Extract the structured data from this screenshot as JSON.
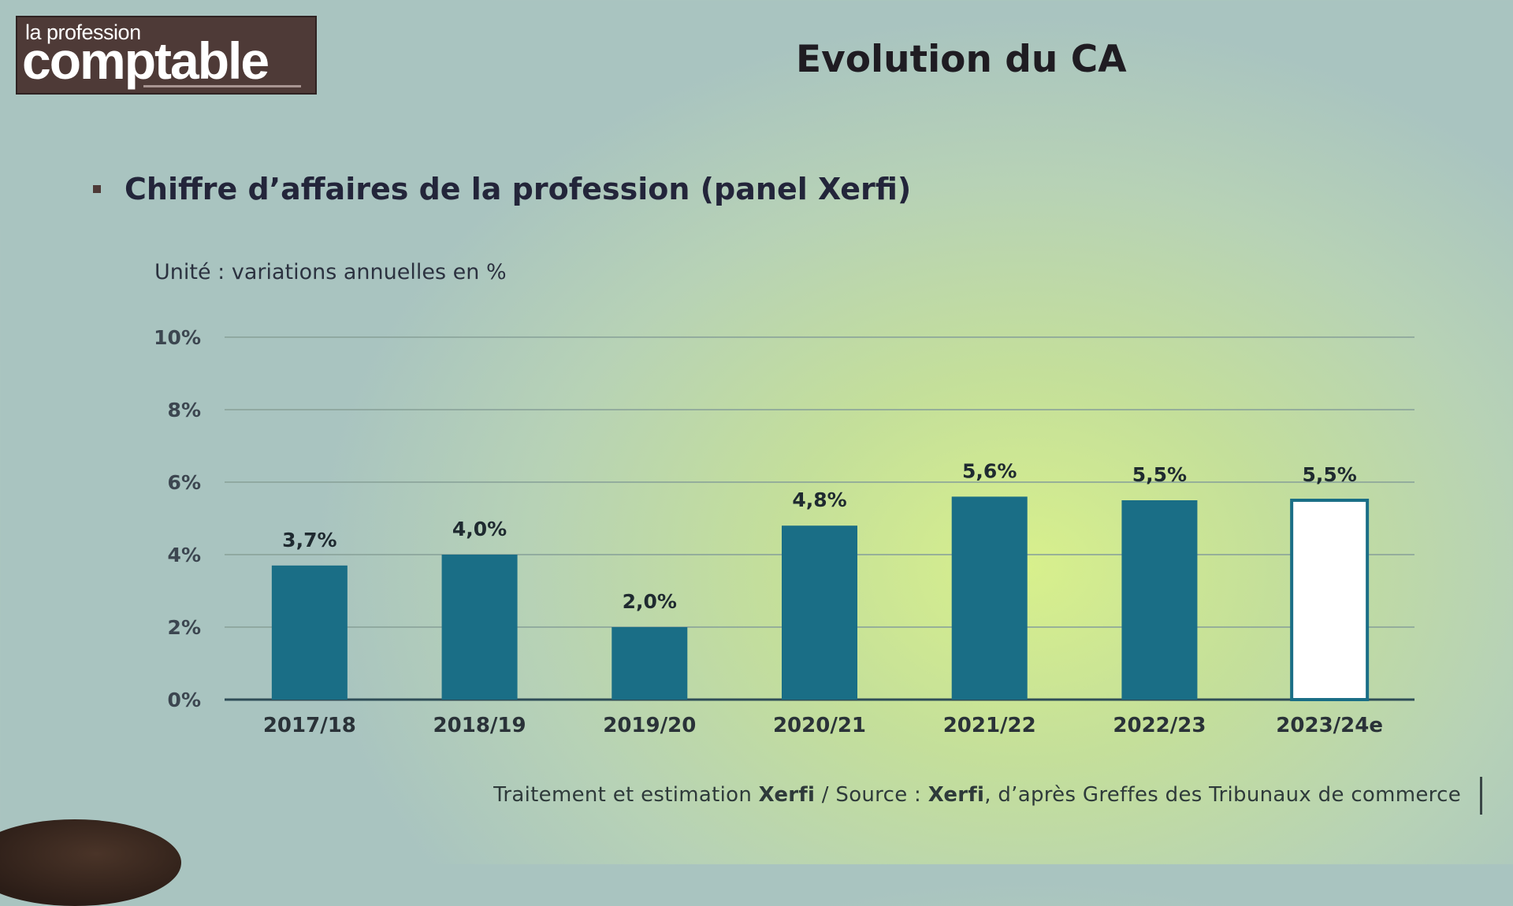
{
  "logo": {
    "line1": "la profession",
    "line2": "comptable"
  },
  "title": "Evolution du CA",
  "subtitle": "Chiffre d’affaires de la profession (panel Xerfi)",
  "source": {
    "part1": "Traitement et estimation ",
    "brand1": "Xerfi",
    "part2": " / Source : ",
    "brand2": "Xerfi",
    "part3": ", d’après Greffes des Tribunaux de commerce"
  },
  "colors": {
    "bar": "#1a6e86",
    "estimate_fill": "#ffffff",
    "estimate_stroke": "#1a6e86",
    "grid": "#8aa39a",
    "axis": "#2f4d57"
  },
  "chart_data": {
    "type": "bar",
    "title": "",
    "ylabel": "Unité : variations annuelles en %",
    "xlabel": "",
    "categories": [
      "2017/18",
      "2018/19",
      "2019/20",
      "2020/21",
      "2021/22",
      "2022/23",
      "2023/24e"
    ],
    "values": [
      3.7,
      4.0,
      2.0,
      4.8,
      5.6,
      5.5,
      5.5
    ],
    "value_labels": [
      "3,7%",
      "4,0%",
      "2,0%",
      "4,8%",
      "5,6%",
      "5,5%",
      "5,5%"
    ],
    "estimated": [
      false,
      false,
      false,
      false,
      false,
      false,
      true
    ],
    "ylim": [
      0,
      10
    ],
    "yticks": [
      0,
      2,
      4,
      6,
      8,
      10
    ],
    "ytick_labels": [
      "0%",
      "2%",
      "4%",
      "6%",
      "8%",
      "10%"
    ],
    "grid": true,
    "legend": "none"
  }
}
